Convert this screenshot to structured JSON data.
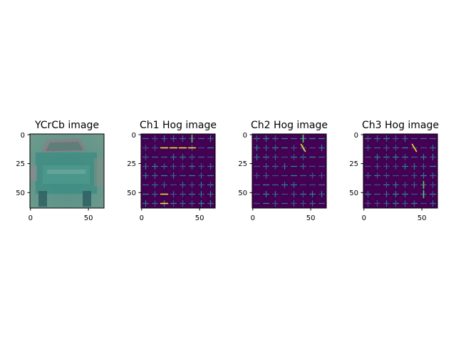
{
  "figure": {
    "background": "#ffffff"
  },
  "chart_data": [
    {
      "type": "image",
      "title": "YCrCb image",
      "image_size": [
        64,
        64
      ],
      "xticks": [
        0,
        50
      ],
      "yticks": [
        0,
        25,
        50
      ],
      "xlim": [
        -0.5,
        63.5
      ],
      "ylim": [
        63.5,
        -0.5
      ],
      "grid": false,
      "content": "photo"
    },
    {
      "type": "heatmap",
      "title": "Ch1 Hog image",
      "image_size": [
        64,
        64
      ],
      "xticks": [
        0,
        50
      ],
      "yticks": [
        0,
        25,
        50
      ],
      "xlim": [
        -0.5,
        63.5
      ],
      "ylim": [
        63.5,
        -0.5
      ],
      "grid": false,
      "colormap": "viridis"
    },
    {
      "type": "heatmap",
      "title": "Ch2 Hog image",
      "image_size": [
        64,
        64
      ],
      "xticks": [
        0,
        50
      ],
      "yticks": [
        0,
        25,
        50
      ],
      "xlim": [
        -0.5,
        63.5
      ],
      "ylim": [
        63.5,
        -0.5
      ],
      "grid": false,
      "colormap": "viridis"
    },
    {
      "type": "heatmap",
      "title": "Ch3 Hog image",
      "image_size": [
        64,
        64
      ],
      "xticks": [
        0,
        50
      ],
      "yticks": [
        0,
        25,
        50
      ],
      "xlim": [
        -0.5,
        63.5
      ],
      "ylim": [
        63.5,
        -0.5
      ],
      "grid": false,
      "colormap": "viridis"
    }
  ]
}
